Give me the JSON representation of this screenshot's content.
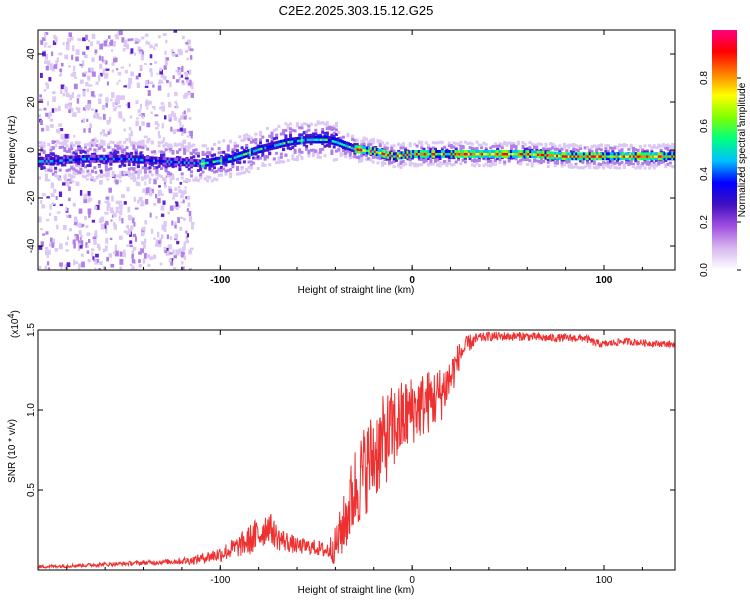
{
  "title": "C2E2.2025.303.15.12.G25",
  "chart_data": [
    {
      "type": "heatmap",
      "xlabel": "Height of straight line (km)",
      "ylabel": "Frequency (Hz)",
      "xlim": [
        -195,
        137
      ],
      "ylim": [
        -50,
        50
      ],
      "xticks": [
        -100,
        0,
        100
      ],
      "xtick_labels": [
        "-100",
        "0",
        "100"
      ],
      "yticks": [
        -40,
        -20,
        0,
        20,
        40
      ],
      "ytick_labels": [
        "-40",
        "-20",
        "0",
        "20",
        "40"
      ],
      "colorbar": {
        "label": "Normalized spectral amplitude",
        "range": [
          0,
          1
        ],
        "ticks": [
          0.0,
          0.2,
          0.4,
          0.6,
          0.8
        ],
        "tick_labels": [
          "0.0",
          "0.2",
          "0.4",
          "0.6",
          "0.8"
        ],
        "colors": [
          "#ffffff",
          "#d8b8f0",
          "#a050e0",
          "#4010c0",
          "#0000ff",
          "#00c0ff",
          "#00ff80",
          "#80ff00",
          "#ffff00",
          "#ff8000",
          "#ff0000",
          "#ff0080"
        ]
      },
      "ridge": {
        "x": [
          -190,
          -170,
          -150,
          -130,
          -110,
          -95,
          -80,
          -65,
          -55,
          -45,
          -40,
          -30,
          -20,
          -10,
          0,
          20,
          40,
          60,
          80,
          100,
          120,
          135
        ],
        "y": [
          -4,
          -3,
          -3,
          -4,
          -5,
          -3,
          1,
          4,
          5,
          5,
          4,
          1,
          0,
          -2,
          -1,
          -1,
          -1,
          -1,
          -2,
          -2,
          -2,
          -2
        ]
      },
      "noise_region_x": [
        -195,
        -115
      ]
    },
    {
      "type": "line",
      "xlabel": "Height of straight line (km)",
      "ylabel": "SNR (10 * v/v)",
      "exponent_label": "(x10",
      "exponent_power": "4",
      "xlim": [
        -195,
        137
      ],
      "ylim": [
        0,
        1.5
      ],
      "xticks": [
        -100,
        0,
        100
      ],
      "xtick_labels": [
        "-100",
        "0",
        "100"
      ],
      "yticks": [
        0.5,
        1.0,
        1.5
      ],
      "ytick_labels": [
        "0.5",
        "1.0",
        "1.5"
      ],
      "color": "#ee3030",
      "trend": {
        "x": [
          -195,
          -170,
          -150,
          -130,
          -115,
          -100,
          -90,
          -80,
          -75,
          -70,
          -60,
          -50,
          -45,
          -40,
          -35,
          -30,
          -25,
          -20,
          -15,
          -10,
          0,
          10,
          15,
          20,
          25,
          30,
          35,
          40,
          50,
          60,
          70,
          80,
          90,
          95,
          100,
          110,
          120,
          137
        ],
        "y": [
          0.02,
          0.03,
          0.04,
          0.05,
          0.06,
          0.1,
          0.15,
          0.22,
          0.28,
          0.2,
          0.15,
          0.14,
          0.12,
          0.15,
          0.3,
          0.5,
          0.62,
          0.72,
          0.8,
          0.88,
          1.0,
          1.06,
          1.1,
          1.2,
          1.35,
          1.42,
          1.45,
          1.46,
          1.46,
          1.46,
          1.45,
          1.45,
          1.45,
          1.42,
          1.41,
          1.43,
          1.42,
          1.41
        ]
      },
      "noise_amplitude": {
        "x": [
          -195,
          -130,
          -110,
          -90,
          -80,
          -70,
          -60,
          -45,
          -40,
          -30,
          -20,
          -10,
          0,
          10,
          20,
          25,
          35,
          137
        ],
        "y": [
          0.01,
          0.015,
          0.03,
          0.07,
          0.12,
          0.08,
          0.05,
          0.05,
          0.12,
          0.28,
          0.3,
          0.28,
          0.22,
          0.2,
          0.15,
          0.08,
          0.03,
          0.02
        ]
      }
    }
  ]
}
